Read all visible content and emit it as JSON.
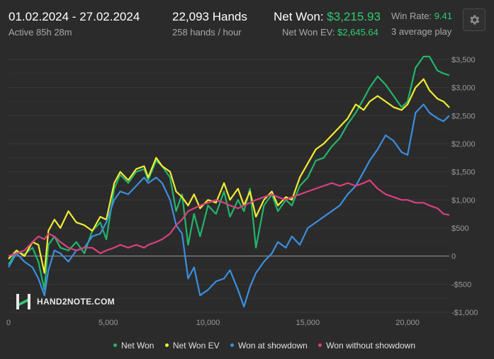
{
  "header": {
    "date_range": "01.02.2024 - 27.02.2024",
    "active_time": "Active 85h 28m",
    "hands_count": "22,093 Hands",
    "hands_rate": "258 hands / hour",
    "net_won_label": "Net Won:",
    "net_won_value": "$3,215.93",
    "net_won_ev_label": "Net Won  EV:",
    "net_won_ev_value": "$2,645.64",
    "win_rate_label": "Win Rate:",
    "win_rate_value": "9.41",
    "players_text": "3 average play"
  },
  "settings_icon": "gear-icon",
  "logo": {
    "text": "HAND2NOTE.COM"
  },
  "colors": {
    "net_won": "#22b56a",
    "net_won_ev": "#f2ec33",
    "showdown": "#3a8fe0",
    "non_showdown": "#d94080"
  },
  "chart_data": {
    "type": "line",
    "xlim": [
      0,
      22093
    ],
    "ylim": [
      -1050,
      3650
    ],
    "x_ticks": [
      0,
      5000,
      10000,
      15000,
      20000
    ],
    "x_tick_labels": [
      "0",
      "5,000",
      "10,000",
      "15,000",
      "20,000"
    ],
    "y_ticks": [
      3500,
      3000,
      2500,
      2000,
      1500,
      1000,
      500,
      0,
      -500,
      -1000
    ],
    "y_tick_labels": [
      "$3,500",
      "$3,000",
      "$2,500",
      "$2,000",
      "$1,500",
      "$1,000",
      "$500",
      "0",
      "-$500",
      "-$1,000"
    ],
    "grid": true,
    "legend_position": "bottom",
    "series": [
      {
        "name": "Net Won",
        "color_key": "net_won",
        "x": [
          0,
          400,
          800,
          1200,
          1500,
          1800,
          2000,
          2300,
          2600,
          3000,
          3400,
          3800,
          4200,
          4600,
          4900,
          5300,
          5600,
          6000,
          6400,
          6800,
          7000,
          7400,
          7700,
          8100,
          8400,
          8700,
          9000,
          9300,
          9600,
          10000,
          10400,
          10800,
          11100,
          11500,
          11800,
          12100,
          12400,
          12800,
          13200,
          13500,
          13900,
          14200,
          14600,
          15000,
          15400,
          15800,
          16200,
          16600,
          17000,
          17400,
          17800,
          18100,
          18500,
          18900,
          19300,
          19700,
          20000,
          20400,
          20800,
          21100,
          21500,
          21800,
          22093
        ],
        "values": [
          -150,
          80,
          30,
          150,
          -100,
          -600,
          200,
          350,
          150,
          100,
          250,
          50,
          450,
          600,
          300,
          1200,
          1450,
          1300,
          1500,
          1550,
          1350,
          1700,
          1600,
          1400,
          800,
          1100,
          200,
          750,
          350,
          900,
          750,
          1150,
          700,
          1000,
          800,
          1200,
          150,
          900,
          1100,
          800,
          1000,
          900,
          1250,
          1400,
          1700,
          1750,
          1950,
          2100,
          2350,
          2550,
          2800,
          3000,
          3200,
          3050,
          2850,
          2650,
          2750,
          3350,
          3550,
          3550,
          3300,
          3250,
          3215
        ]
      },
      {
        "name": "Net Won  EV",
        "color_key": "net_won_ev",
        "x": [
          0,
          400,
          800,
          1200,
          1500,
          1800,
          2000,
          2300,
          2600,
          3000,
          3400,
          3800,
          4200,
          4600,
          4900,
          5300,
          5600,
          6000,
          6400,
          6800,
          7000,
          7400,
          7700,
          8100,
          8400,
          8700,
          9000,
          9300,
          9600,
          10000,
          10400,
          10800,
          11100,
          11500,
          11800,
          12100,
          12400,
          12800,
          13200,
          13500,
          13900,
          14200,
          14600,
          15000,
          15400,
          15800,
          16200,
          16600,
          17000,
          17400,
          17800,
          18100,
          18500,
          18900,
          19300,
          19700,
          20000,
          20400,
          20800,
          21100,
          21500,
          21800,
          22093
        ],
        "values": [
          -50,
          100,
          0,
          250,
          200,
          -300,
          450,
          650,
          500,
          800,
          600,
          550,
          450,
          700,
          650,
          1300,
          1500,
          1350,
          1550,
          1600,
          1400,
          1750,
          1600,
          1500,
          1150,
          1050,
          900,
          1100,
          850,
          1000,
          950,
          1300,
          1000,
          1200,
          900,
          1150,
          700,
          1000,
          1150,
          900,
          1050,
          1000,
          1400,
          1650,
          1900,
          2000,
          2150,
          2300,
          2450,
          2700,
          2600,
          2750,
          2850,
          2750,
          2650,
          2600,
          2700,
          3000,
          3150,
          2950,
          2800,
          2750,
          2645
        ]
      },
      {
        "name": "Won at showdown",
        "color_key": "showdown",
        "x": [
          0,
          400,
          800,
          1200,
          1500,
          1800,
          2000,
          2300,
          2600,
          3000,
          3400,
          3800,
          4200,
          4600,
          4900,
          5300,
          5600,
          6000,
          6400,
          6800,
          7000,
          7400,
          7700,
          8100,
          8400,
          8700,
          9000,
          9300,
          9600,
          10000,
          10400,
          10800,
          11100,
          11500,
          11800,
          12100,
          12400,
          12800,
          13200,
          13500,
          13900,
          14200,
          14600,
          15000,
          15400,
          15800,
          16200,
          16600,
          17000,
          17400,
          17800,
          18100,
          18500,
          18900,
          19300,
          19700,
          20000,
          20400,
          20800,
          21100,
          21500,
          21800,
          22093
        ],
        "values": [
          -200,
          50,
          -100,
          -200,
          -400,
          -700,
          -250,
          100,
          50,
          -100,
          100,
          150,
          350,
          400,
          600,
          1000,
          1150,
          1100,
          1250,
          1400,
          1300,
          1400,
          1300,
          1000,
          550,
          400,
          -400,
          -200,
          -700,
          -600,
          -450,
          -400,
          -250,
          -600,
          -900,
          -550,
          -300,
          -100,
          50,
          250,
          150,
          350,
          200,
          500,
          600,
          700,
          800,
          900,
          1100,
          1250,
          1500,
          1700,
          1900,
          2150,
          2050,
          1850,
          1800,
          2550,
          2700,
          2550,
          2450,
          2400,
          2500
        ]
      },
      {
        "name": "Won without showdown",
        "color_key": "non_showdown",
        "x": [
          0,
          400,
          800,
          1200,
          1500,
          1800,
          2000,
          2300,
          2600,
          3000,
          3400,
          3800,
          4200,
          4600,
          4900,
          5300,
          5600,
          6000,
          6400,
          6800,
          7000,
          7400,
          7700,
          8100,
          8400,
          8700,
          9000,
          9300,
          9600,
          10000,
          10400,
          10800,
          11100,
          11500,
          11800,
          12100,
          12400,
          12800,
          13200,
          13500,
          13900,
          14200,
          14600,
          15000,
          15400,
          15800,
          16200,
          16600,
          17000,
          17400,
          17800,
          18100,
          18500,
          18900,
          19300,
          19700,
          20000,
          20400,
          20800,
          21100,
          21500,
          21800,
          22093
        ],
        "values": [
          0,
          50,
          100,
          250,
          350,
          300,
          400,
          350,
          250,
          150,
          100,
          150,
          150,
          50,
          100,
          150,
          200,
          150,
          200,
          150,
          200,
          250,
          300,
          400,
          550,
          650,
          800,
          850,
          900,
          950,
          1000,
          950,
          900,
          850,
          900,
          950,
          1000,
          1050,
          1100,
          1050,
          1000,
          1050,
          1100,
          1150,
          1200,
          1250,
          1300,
          1250,
          1300,
          1250,
          1300,
          1350,
          1200,
          1100,
          1050,
          1000,
          1000,
          950,
          950,
          900,
          850,
          750,
          730
        ]
      }
    ]
  },
  "legend": {
    "items": [
      {
        "label": "Net Won",
        "color_key": "net_won"
      },
      {
        "label": "Net Won  EV",
        "color_key": "net_won_ev"
      },
      {
        "label": "Won at showdown",
        "color_key": "showdown"
      },
      {
        "label": "Won without showdown",
        "color_key": "non_showdown"
      }
    ]
  }
}
